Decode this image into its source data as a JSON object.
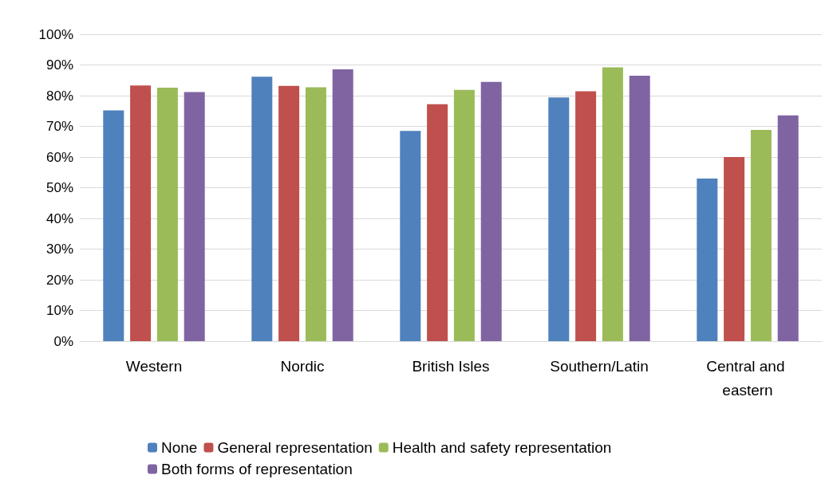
{
  "chart_data": {
    "type": "bar",
    "categories": [
      "Western",
      "Nordic",
      "British Isles",
      "Southern/Latin",
      "Central and eastern"
    ],
    "series": [
      {
        "name": "None",
        "color": "#4f81bd",
        "values": [
          75.2,
          86.2,
          68.5,
          79.4,
          53
        ]
      },
      {
        "name": "General representation",
        "color": "#c0504d",
        "values": [
          83.3,
          83.2,
          77.2,
          81.4,
          60
        ]
      },
      {
        "name": "Health and safety representation",
        "color": "#9bbb59",
        "values": [
          82.6,
          82.7,
          81.9,
          89.2,
          68.8
        ]
      },
      {
        "name": "Both forms of representation",
        "color": "#8064a2",
        "values": [
          81.2,
          88.6,
          84.5,
          86.5,
          73.6
        ]
      }
    ],
    "ylim": [
      0,
      100
    ],
    "yticks": [
      {
        "value": 0,
        "label": "0%"
      },
      {
        "value": 10,
        "label": "10%"
      },
      {
        "value": 20,
        "label": "20%"
      },
      {
        "value": 30,
        "label": "30%"
      },
      {
        "value": 40,
        "label": "40%"
      },
      {
        "value": 50,
        "label": "50%"
      },
      {
        "value": 60,
        "label": "60%"
      },
      {
        "value": 70,
        "label": "70%"
      },
      {
        "value": 80,
        "label": "80%"
      },
      {
        "value": 90,
        "label": "90%"
      },
      {
        "value": 100,
        "label": "100%"
      }
    ],
    "grid": "y",
    "legend": "bottom"
  }
}
